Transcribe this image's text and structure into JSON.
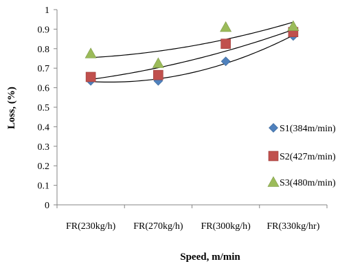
{
  "chart_data": {
    "type": "scatter",
    "xlabel": "Speed,  m/min",
    "ylabel": "Loss, (%)",
    "categories": [
      "FR(230kg/h)",
      "FR(270kg/h)",
      "FR(300kg/h)",
      "FR(330kg/hr)"
    ],
    "ylim": [
      0,
      1
    ],
    "yticks": [
      "0",
      "0.1",
      "0.2",
      "0.3",
      "0.4",
      "0.5",
      "0.6",
      "0.7",
      "0.8",
      "0.9",
      "1"
    ],
    "grid": false,
    "legend_position": "right",
    "trendlines": "polynomial (order 2) per series",
    "series": [
      {
        "name": "S1(384m/min)",
        "marker": "diamond",
        "color": "#4F81BD",
        "values": [
          0.635,
          0.635,
          0.735,
          0.865
        ]
      },
      {
        "name": "S2(427m/min)",
        "marker": "square",
        "color": "#C0504D",
        "values": [
          0.655,
          0.665,
          0.825,
          0.885
        ]
      },
      {
        "name": "S3(480m/min)",
        "marker": "triangle",
        "color": "#9BBB59",
        "values": [
          0.775,
          0.725,
          0.91,
          0.915
        ]
      }
    ]
  }
}
